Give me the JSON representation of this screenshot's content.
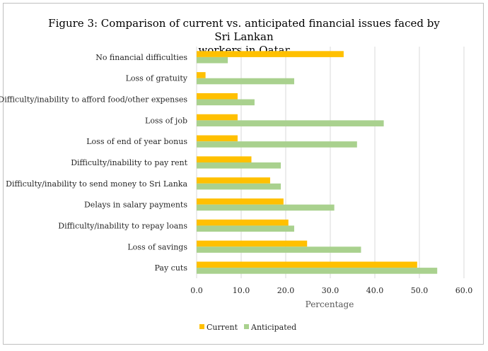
{
  "chart_data": {
    "type": "bar",
    "orientation": "horizontal",
    "title": "Figure 3: Comparison of current vs. anticipated financial issues faced by Sri Lankan workers in Qatar",
    "title_line1": "Figure 3: Comparison of current vs. anticipated financial issues faced by Sri Lankan",
    "title_line2": "workers in Qatar",
    "xlabel": "Percentage",
    "ylabel": "",
    "xlim": [
      0,
      60
    ],
    "xticks": [
      0,
      10,
      20,
      30,
      40,
      50,
      60
    ],
    "xtick_labels": [
      "0.0",
      "10.0",
      "20.0",
      "30.0",
      "40.0",
      "50.0",
      "60.0"
    ],
    "grid": true,
    "legend_position": "bottom",
    "categories": [
      "No financial difficulties",
      "Loss of gratuity",
      "Difficulty/inability to afford food/other expenses",
      "Loss of job",
      "Loss of end of year bonus",
      "Difficulty/inability to pay rent",
      "Difficulty/inability to send money to Sri Lanka",
      "Delays in salary  payments",
      "Difficulty/inability to repay loans",
      "Loss of savings",
      "Pay cuts"
    ],
    "series": [
      {
        "name": "Current",
        "color": "#ffc000",
        "values": [
          33.0,
          2.0,
          9.2,
          9.2,
          9.2,
          12.3,
          16.5,
          19.5,
          20.6,
          24.8,
          49.5
        ]
      },
      {
        "name": "Anticipated",
        "color": "#a9d18e",
        "values": [
          7.0,
          21.9,
          13.0,
          42.0,
          36.0,
          18.9,
          18.9,
          30.9,
          21.9,
          36.9,
          54.0
        ]
      }
    ]
  }
}
